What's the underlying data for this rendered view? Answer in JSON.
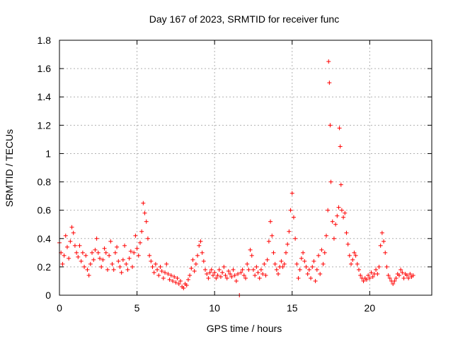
{
  "chart_data": {
    "type": "scatter",
    "title": "Day 167 of 2023, SRMTID for receiver func",
    "xlabel": "GPS time / hours",
    "ylabel": "SRMTID / TECUs",
    "xlim": [
      0,
      24
    ],
    "ylim": [
      0,
      1.8
    ],
    "x_ticks": [
      0,
      5,
      10,
      15,
      20
    ],
    "x_tick_labels": [
      "0",
      "5",
      "10",
      "15",
      "20"
    ],
    "y_ticks": [
      0,
      0.2,
      0.4,
      0.6,
      0.8,
      1,
      1.2,
      1.4,
      1.6,
      1.8
    ],
    "y_tick_labels": [
      "0",
      "0.2",
      "0.4",
      "0.6",
      "0.8",
      "1",
      "1.2",
      "1.4",
      "1.6",
      "1.8"
    ],
    "grid": true,
    "marker": "+",
    "marker_color": "#ff0000",
    "series": [
      {
        "name": "SRMTID",
        "x": [
          0.0,
          0.1,
          0.2,
          0.3,
          0.4,
          0.5,
          0.6,
          0.7,
          0.8,
          0.9,
          1.0,
          1.1,
          1.2,
          1.3,
          1.4,
          1.5,
          1.6,
          1.7,
          1.8,
          1.9,
          2.0,
          2.1,
          2.2,
          2.3,
          2.4,
          2.5,
          2.6,
          2.7,
          2.8,
          2.9,
          3.0,
          3.1,
          3.2,
          3.3,
          3.4,
          3.5,
          3.6,
          3.7,
          3.8,
          3.9,
          4.0,
          4.1,
          4.2,
          4.3,
          4.4,
          4.5,
          4.6,
          4.7,
          4.8,
          4.9,
          5.0,
          5.1,
          5.2,
          5.3,
          5.4,
          5.5,
          5.6,
          5.7,
          5.8,
          5.9,
          6.0,
          6.1,
          6.2,
          6.3,
          6.4,
          6.5,
          6.6,
          6.7,
          6.8,
          6.9,
          7.0,
          7.1,
          7.2,
          7.3,
          7.4,
          7.5,
          7.6,
          7.7,
          7.8,
          7.9,
          8.0,
          8.1,
          8.2,
          8.3,
          8.4,
          8.5,
          8.6,
          8.7,
          8.8,
          8.9,
          9.0,
          9.1,
          9.2,
          9.3,
          9.4,
          9.5,
          9.6,
          9.7,
          9.8,
          9.9,
          10.0,
          10.1,
          10.2,
          10.3,
          10.4,
          10.5,
          10.6,
          10.7,
          10.8,
          10.9,
          11.0,
          11.1,
          11.2,
          11.3,
          11.4,
          11.5,
          11.6,
          11.7,
          11.8,
          11.9,
          12.0,
          12.1,
          12.2,
          12.3,
          12.4,
          12.5,
          12.6,
          12.7,
          12.8,
          12.9,
          13.0,
          13.1,
          13.2,
          13.3,
          13.4,
          13.5,
          13.6,
          13.7,
          13.8,
          13.9,
          14.0,
          14.1,
          14.2,
          14.3,
          14.4,
          14.5,
          14.6,
          14.7,
          14.8,
          14.9,
          15.0,
          15.1,
          15.2,
          15.3,
          15.4,
          15.5,
          15.6,
          15.7,
          15.8,
          15.9,
          16.0,
          16.1,
          16.2,
          16.3,
          16.4,
          16.5,
          16.6,
          16.7,
          16.8,
          16.9,
          17.0,
          17.1,
          17.2,
          17.3,
          17.35,
          17.4,
          17.45,
          17.5,
          17.6,
          17.7,
          17.8,
          17.9,
          18.0,
          18.05,
          18.1,
          18.15,
          18.2,
          18.3,
          18.4,
          18.5,
          18.6,
          18.7,
          18.8,
          18.9,
          19.0,
          19.1,
          19.2,
          19.3,
          19.4,
          19.5,
          19.6,
          19.7,
          19.8,
          19.9,
          20.0,
          20.1,
          20.2,
          20.3,
          20.4,
          20.5,
          20.6,
          20.7,
          20.8,
          20.9,
          21.0,
          21.1,
          21.2,
          21.3,
          21.4,
          21.5,
          21.6,
          21.7,
          21.8,
          21.9,
          22.0,
          22.1,
          22.2,
          22.3,
          22.4,
          22.5,
          22.6,
          22.7,
          22.8
        ],
        "y": [
          0.37,
          0.3,
          0.22,
          0.28,
          0.42,
          0.34,
          0.26,
          0.38,
          0.48,
          0.44,
          0.35,
          0.3,
          0.27,
          0.35,
          0.24,
          0.3,
          0.2,
          0.28,
          0.18,
          0.14,
          0.22,
          0.3,
          0.25,
          0.32,
          0.4,
          0.3,
          0.26,
          0.2,
          0.25,
          0.33,
          0.3,
          0.18,
          0.28,
          0.38,
          0.22,
          0.18,
          0.3,
          0.34,
          0.24,
          0.2,
          0.16,
          0.25,
          0.35,
          0.22,
          0.18,
          0.26,
          0.31,
          0.2,
          0.3,
          0.42,
          0.33,
          0.28,
          0.37,
          0.45,
          0.65,
          0.58,
          0.52,
          0.4,
          0.28,
          0.24,
          0.2,
          0.16,
          0.22,
          0.18,
          0.14,
          0.2,
          0.17,
          0.12,
          0.16,
          0.22,
          0.15,
          0.11,
          0.14,
          0.1,
          0.13,
          0.09,
          0.12,
          0.08,
          0.1,
          0.06,
          0.05,
          0.08,
          0.07,
          0.11,
          0.14,
          0.19,
          0.25,
          0.17,
          0.22,
          0.28,
          0.35,
          0.38,
          0.3,
          0.24,
          0.18,
          0.15,
          0.12,
          0.16,
          0.18,
          0.14,
          0.16,
          0.12,
          0.14,
          0.18,
          0.13,
          0.16,
          0.2,
          0.14,
          0.12,
          0.17,
          0.15,
          0.13,
          0.18,
          0.14,
          0.1,
          0.15,
          0.0,
          0.16,
          0.18,
          0.14,
          0.12,
          0.22,
          0.18,
          0.32,
          0.28,
          0.18,
          0.14,
          0.2,
          0.16,
          0.12,
          0.18,
          0.15,
          0.22,
          0.14,
          0.25,
          0.38,
          0.52,
          0.42,
          0.3,
          0.22,
          0.18,
          0.15,
          0.2,
          0.24,
          0.2,
          0.22,
          0.3,
          0.36,
          0.45,
          0.6,
          0.72,
          0.55,
          0.4,
          0.22,
          0.12,
          0.18,
          0.26,
          0.3,
          0.24,
          0.2,
          0.15,
          0.18,
          0.12,
          0.2,
          0.24,
          0.1,
          0.18,
          0.28,
          0.15,
          0.32,
          0.22,
          0.3,
          0.42,
          0.6,
          1.65,
          1.5,
          1.2,
          0.8,
          0.52,
          0.4,
          0.5,
          0.56,
          0.62,
          1.18,
          1.05,
          0.78,
          0.6,
          0.55,
          0.58,
          0.44,
          0.36,
          0.28,
          0.22,
          0.25,
          0.3,
          0.28,
          0.22,
          0.18,
          0.14,
          0.12,
          0.1,
          0.12,
          0.11,
          0.14,
          0.12,
          0.16,
          0.13,
          0.15,
          0.18,
          0.15,
          0.2,
          0.35,
          0.44,
          0.38,
          0.3,
          0.2,
          0.14,
          0.12,
          0.1,
          0.08,
          0.1,
          0.12,
          0.15,
          0.14,
          0.18,
          0.16,
          0.12,
          0.15,
          0.14,
          0.12,
          0.15,
          0.13,
          0.14
        ]
      }
    ]
  }
}
